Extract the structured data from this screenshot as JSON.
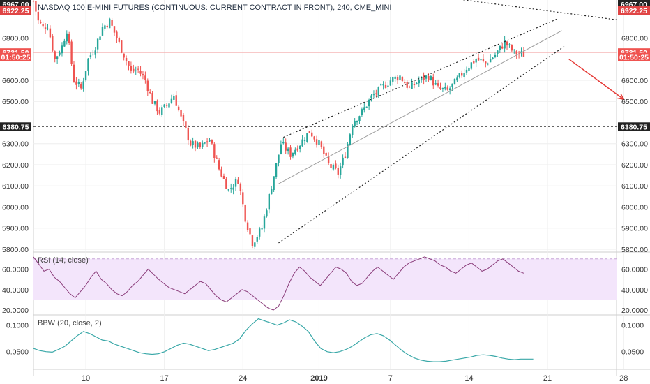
{
  "chart_data": {
    "type": "candlestick",
    "title": "NASDAQ 100 E-MINI FUTURES (CONTINUOUS: CURRENT CONTRACT IN FRONT), 240, CME_MINI",
    "price_axis": {
      "ticks": [
        "5800.00",
        "5900.00",
        "6000.00",
        "6100.00",
        "6200.00",
        "6300.00",
        "6500.00",
        "6600.00",
        "6800.00"
      ],
      "tick_values": [
        5800,
        5900,
        6000,
        6100,
        6200,
        6300,
        6500,
        6600,
        6800
      ],
      "range": [
        5790,
        6980
      ]
    },
    "price_badges": [
      {
        "label": "6967.00",
        "value": 6967,
        "color": "#222222"
      },
      {
        "label": "6922.25",
        "value": 6922.25,
        "color": "#e04545"
      },
      {
        "label": "6731.50",
        "value": 6731.5,
        "color": "#ef5350"
      },
      {
        "label": "01:50:25",
        "value": 6710,
        "color": "#ef5350"
      },
      {
        "label": "6380.75",
        "value": 6380.75,
        "color": "#222222"
      }
    ],
    "horizontal_line_value": 6380.75,
    "current_price_value": 6731.5,
    "x_axis": {
      "labels": [
        "10",
        "17",
        "24",
        "2019",
        "7",
        "14",
        "21",
        "28"
      ],
      "label_index": [
        22,
        55,
        88,
        120,
        150,
        183,
        216,
        248
      ],
      "bars": 245
    },
    "candles_approx": [
      [
        0,
        6975
      ],
      [
        2,
        6880
      ],
      [
        4,
        6850
      ],
      [
        6,
        6860
      ],
      [
        9,
        6700
      ],
      [
        12,
        6760
      ],
      [
        14,
        6840
      ],
      [
        17,
        6600
      ],
      [
        20,
        6560
      ],
      [
        23,
        6700
      ],
      [
        26,
        6760
      ],
      [
        29,
        6850
      ],
      [
        32,
        6880
      ],
      [
        35,
        6800
      ],
      [
        38,
        6720
      ],
      [
        41,
        6640
      ],
      [
        44,
        6650
      ],
      [
        47,
        6600
      ],
      [
        50,
        6500
      ],
      [
        53,
        6450
      ],
      [
        56,
        6480
      ],
      [
        59,
        6530
      ],
      [
        62,
        6420
      ],
      [
        66,
        6300
      ],
      [
        70,
        6280
      ],
      [
        74,
        6320
      ],
      [
        78,
        6180
      ],
      [
        82,
        6080
      ],
      [
        86,
        6130
      ],
      [
        89,
        5950
      ],
      [
        92,
        5830
      ],
      [
        96,
        5900
      ],
      [
        100,
        6100
      ],
      [
        104,
        6300
      ],
      [
        108,
        6250
      ],
      [
        112,
        6300
      ],
      [
        116,
        6360
      ],
      [
        120,
        6300
      ],
      [
        124,
        6200
      ],
      [
        128,
        6160
      ],
      [
        131,
        6250
      ],
      [
        134,
        6400
      ],
      [
        138,
        6450
      ],
      [
        142,
        6520
      ],
      [
        146,
        6560
      ],
      [
        150,
        6600
      ],
      [
        154,
        6620
      ],
      [
        158,
        6560
      ],
      [
        162,
        6600
      ],
      [
        166,
        6620
      ],
      [
        170,
        6560
      ],
      [
        174,
        6550
      ],
      [
        178,
        6600
      ],
      [
        182,
        6660
      ],
      [
        186,
        6700
      ],
      [
        190,
        6680
      ],
      [
        194,
        6720
      ],
      [
        198,
        6780
      ],
      [
        202,
        6730
      ],
      [
        206,
        6720
      ]
    ],
    "annotations": {
      "rising_wedge": {
        "upper_line": [
          [
            105,
            6330
          ],
          [
            220,
            6890
          ]
        ],
        "lower_line": [
          [
            103,
            5830
          ],
          [
            223,
            6760
          ]
        ],
        "mid_line": [
          [
            103,
            6110
          ],
          [
            222,
            6835
          ]
        ]
      },
      "upper_trend_line": [
        [
          140,
          7040
        ],
        [
          246,
          6885
        ]
      ],
      "down_arrow": [
        [
          225,
          6700
        ],
        [
          248,
          6510
        ]
      ]
    },
    "rsi": {
      "label": "RSI (14, close)",
      "ticks": [
        "20.0000",
        "40.0000",
        "60.0000"
      ],
      "tick_values": [
        20,
        40,
        60
      ],
      "range": [
        16,
        76
      ],
      "band": [
        30,
        70
      ],
      "values": [
        72,
        65,
        58,
        60,
        52,
        48,
        42,
        36,
        32,
        38,
        44,
        52,
        58,
        50,
        46,
        40,
        36,
        34,
        38,
        44,
        48,
        54,
        60,
        55,
        50,
        46,
        42,
        40,
        38,
        36,
        40,
        44,
        48,
        46,
        40,
        34,
        30,
        28,
        32,
        36,
        40,
        38,
        34,
        30,
        26,
        22,
        20,
        24,
        34,
        46,
        56,
        62,
        58,
        52,
        48,
        44,
        50,
        56,
        62,
        60,
        56,
        48,
        44,
        46,
        52,
        58,
        62,
        58,
        54,
        50,
        56,
        62,
        66,
        68,
        70,
        72,
        70,
        68,
        64,
        62,
        58,
        56,
        60,
        64,
        66,
        62,
        58,
        60,
        64,
        68,
        70,
        66,
        62,
        58,
        56
      ]
    },
    "bbw": {
      "label": "BBW (20, close, 2)",
      "ticks": [
        "0.0500",
        "0.1000"
      ],
      "tick_values": [
        0.05,
        0.1
      ],
      "range": [
        0.018,
        0.118
      ],
      "values": [
        0.056,
        0.052,
        0.05,
        0.049,
        0.054,
        0.06,
        0.07,
        0.08,
        0.088,
        0.084,
        0.078,
        0.072,
        0.07,
        0.064,
        0.06,
        0.056,
        0.052,
        0.048,
        0.046,
        0.045,
        0.046,
        0.05,
        0.056,
        0.062,
        0.066,
        0.064,
        0.06,
        0.056,
        0.052,
        0.054,
        0.058,
        0.062,
        0.066,
        0.074,
        0.09,
        0.102,
        0.112,
        0.108,
        0.104,
        0.1,
        0.104,
        0.11,
        0.106,
        0.098,
        0.088,
        0.07,
        0.056,
        0.05,
        0.048,
        0.05,
        0.054,
        0.06,
        0.068,
        0.076,
        0.082,
        0.084,
        0.08,
        0.072,
        0.062,
        0.052,
        0.044,
        0.038,
        0.034,
        0.032,
        0.031,
        0.031,
        0.032,
        0.034,
        0.036,
        0.038,
        0.04,
        0.043,
        0.044,
        0.043,
        0.041,
        0.038,
        0.036,
        0.035,
        0.036,
        0.036,
        0.036
      ]
    }
  }
}
